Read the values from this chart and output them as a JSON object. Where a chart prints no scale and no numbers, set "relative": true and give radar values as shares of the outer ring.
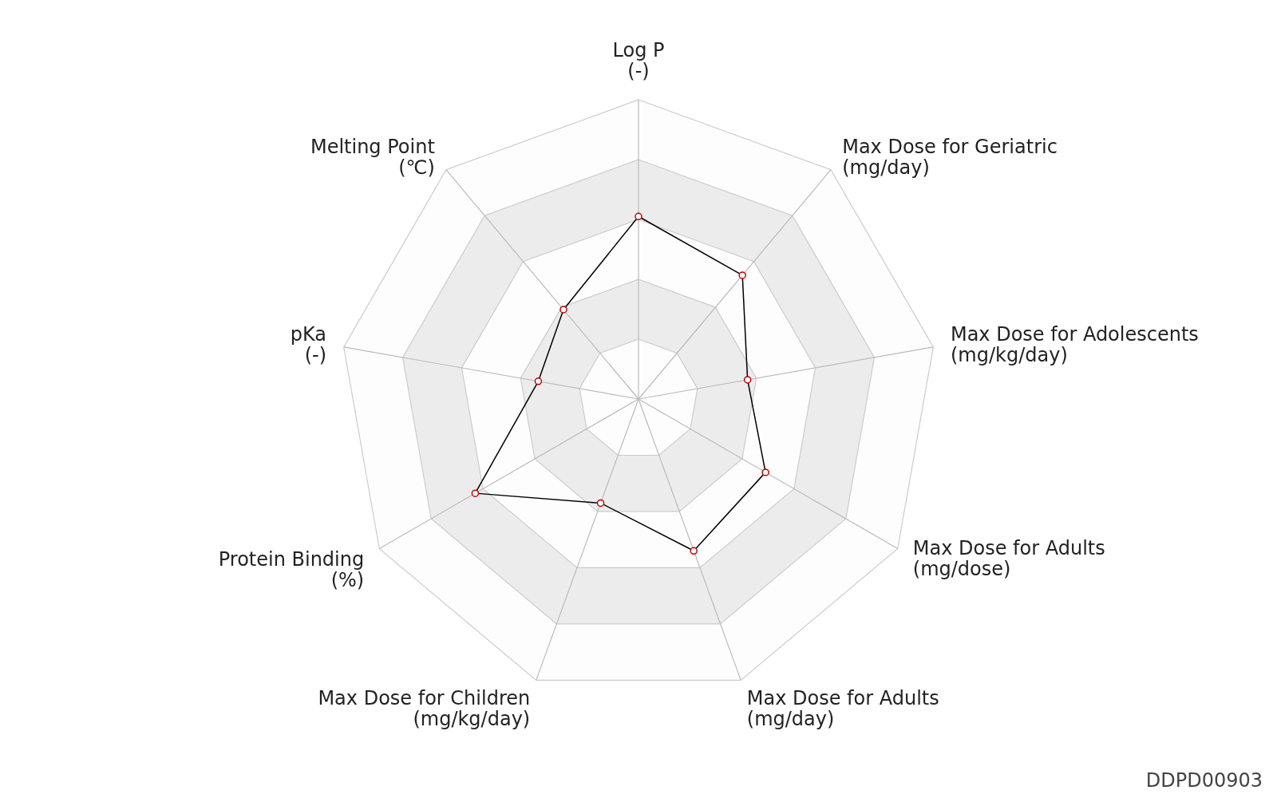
{
  "chart_data": {
    "type": "radar",
    "relative": true,
    "grid": true,
    "marker": "circle",
    "categories": [
      "Log P\n(-)",
      "Max Dose for Geriatric\n(mg/day)",
      "Max Dose for Adolescents\n(mg/kg/day)",
      "Max Dose for Adults\n(mg/dose)",
      "Max Dose for Adults\n(mg/day)",
      "Max Dose for Children\n(mg/kg/day)",
      "Protein Binding\n(%)",
      "pKa\n(-)",
      "Melting Point\n(℃)"
    ],
    "series": [
      {
        "color": "#000000",
        "values": [
          0.61,
          0.54,
          0.37,
          0.49,
          0.54,
          0.37,
          0.63,
          0.34,
          0.39
        ]
      }
    ],
    "annotations": [
      "DDPD00903"
    ]
  }
}
